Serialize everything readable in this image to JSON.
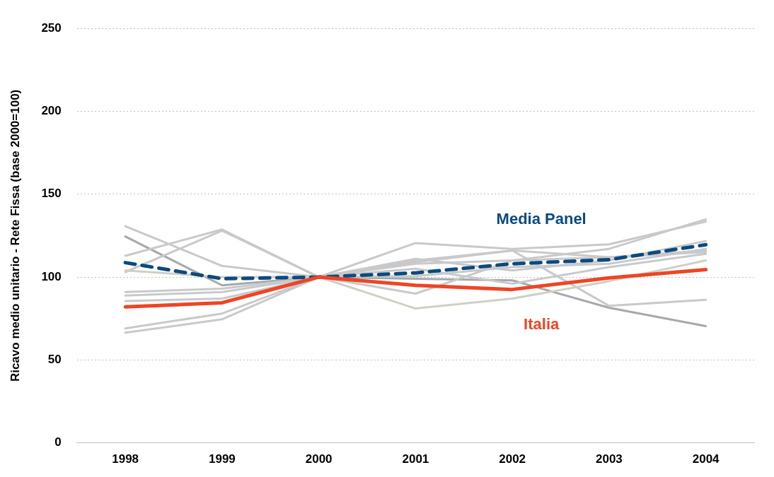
{
  "chart_data": {
    "type": "line",
    "ylabel": "Ricavo medio unitario - Rete Fissa (base 2000=100)",
    "categories": [
      "1998",
      "1999",
      "2000",
      "2001",
      "2002",
      "2003",
      "2004"
    ],
    "ylim": [
      0,
      250
    ],
    "yticks": [
      0,
      50,
      100,
      150,
      200,
      250
    ],
    "grid": "y",
    "legend": false,
    "marker": "none",
    "series": [
      {
        "color": "#c8c9cb",
        "values": [
          130.7,
          106.7,
          100,
          109,
          116,
          112,
          116
        ]
      },
      {
        "color": "#a7a8aa",
        "values": [
          124.5,
          95,
          100,
          99,
          98,
          81.5,
          70.4
        ]
      },
      {
        "color": "#c8c9cb",
        "values": [
          112.8,
          128.7,
          100,
          90,
          110,
          117,
          134.8
        ]
      },
      {
        "color": "#c8c9cb",
        "values": [
          103,
          128,
          100,
          110,
          116,
          82.6,
          86.3
        ]
      },
      {
        "color": "#c8c9cb",
        "values": [
          91,
          93,
          100,
          120.5,
          117,
          119.7,
          133.5
        ]
      },
      {
        "color": "#c8c9cb",
        "values": [
          88.8,
          91,
          100,
          111,
          104,
          110,
          121.7
        ]
      },
      {
        "color": "#c8c9cb",
        "values": [
          85.5,
          87,
          100,
          108,
          110,
          112,
          115
        ]
      },
      {
        "color": "#c8c9cb",
        "values": [
          69,
          78,
          100,
          100.5,
          106,
          108,
          117
        ]
      },
      {
        "color": "#c8c9cb",
        "values": [
          66.4,
          74.5,
          100,
          105,
          96,
          106,
          114
        ]
      },
      {
        "color": "#cfd0c4",
        "values": [
          104,
          100,
          100,
          81,
          87,
          97.5,
          110
        ]
      },
      {
        "name": "Media Panel",
        "color": "#0b4a80",
        "line_style": "dashed",
        "values": [
          108.7,
          99,
          100,
          102.5,
          108,
          110.5,
          119.5
        ]
      },
      {
        "name": "Italia",
        "color": "#ee4524",
        "values": [
          82,
          84.5,
          100,
          95,
          92.5,
          99.5,
          104.5
        ]
      }
    ]
  }
}
